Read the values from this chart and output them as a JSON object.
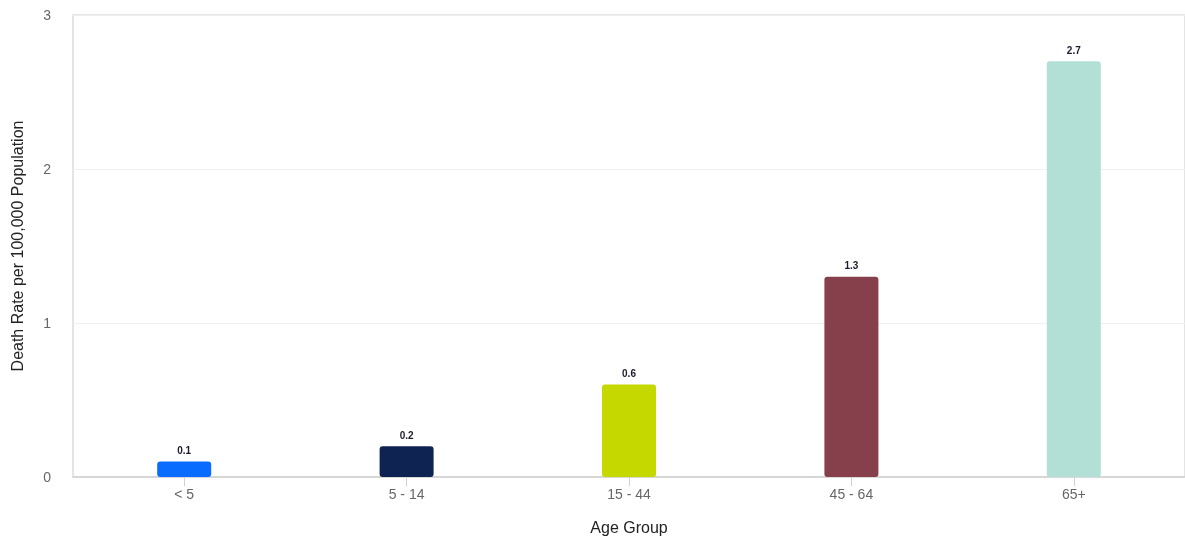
{
  "chart_data": {
    "type": "bar",
    "xlabel": "Age Group",
    "ylabel": "Death Rate per 100,000 Population",
    "categories": [
      "< 5",
      "5 - 14",
      "15 - 44",
      "45 - 64",
      "65+"
    ],
    "values": [
      0.1,
      0.2,
      0.6,
      1.3,
      2.7
    ],
    "colors": [
      "#0a6cff",
      "#0f2352",
      "#c5d800",
      "#86404b",
      "#b2e0d6"
    ],
    "ylim": [
      0,
      3
    ],
    "yticks": [
      0,
      1,
      2,
      3
    ],
    "grid": "y",
    "data_labels": true
  }
}
